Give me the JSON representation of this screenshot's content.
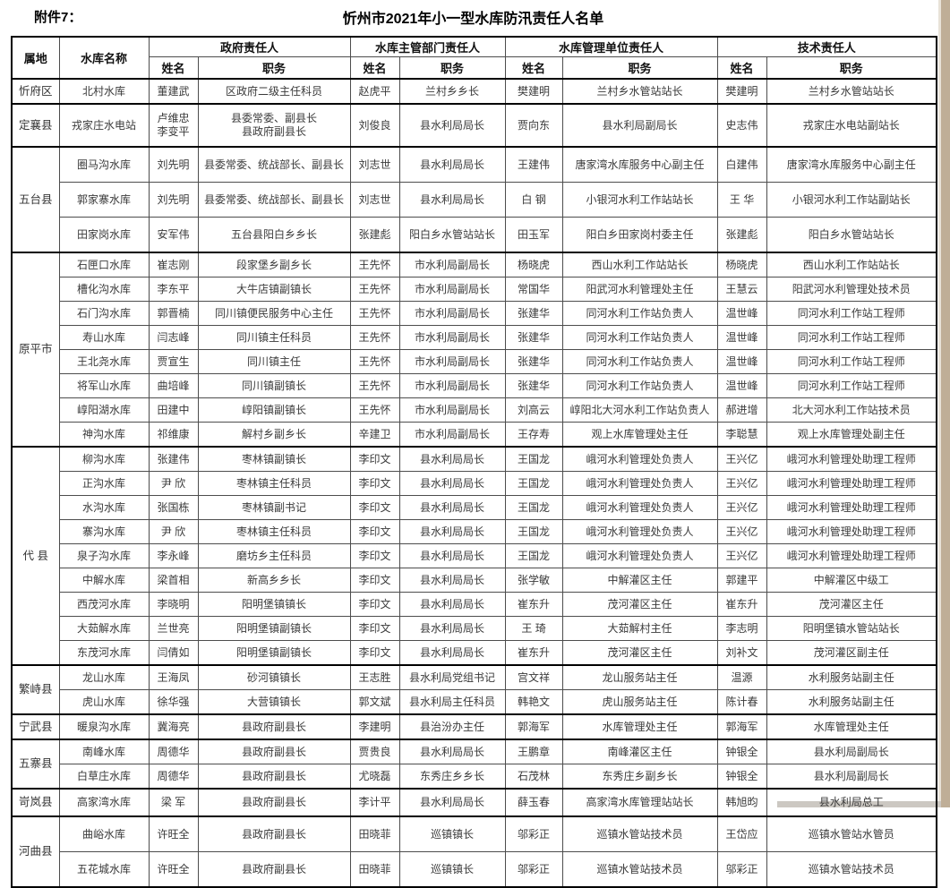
{
  "page": {
    "attachment_label": "附件7：",
    "title": "忻州市2021年小一型水库防汛责任人名单"
  },
  "colors": {
    "page_edge": "#bfae97",
    "scrollbar": "#ccc8c2",
    "table_border": "#000000"
  },
  "table": {
    "headers": {
      "region": "属地",
      "reservoir": "水库名称",
      "groups": [
        "政府责任人",
        "水库主管部门责任人",
        "水库管理单位责任人",
        "技术责任人"
      ],
      "name": "姓名",
      "duty": "职务"
    },
    "sections": [
      {
        "region": "忻府区",
        "rows": [
          {
            "reservoir": "北村水库",
            "gov_name": "董建武",
            "gov_duty": "区政府二级主任科员",
            "dept_name": "赵虎平",
            "dept_duty": "兰村乡乡长",
            "mgmt_name": "樊建明",
            "mgmt_duty": "兰村乡水管站站长",
            "tech_name": "樊建明",
            "tech_duty": "兰村乡水管站站长"
          }
        ]
      },
      {
        "region": "定襄县",
        "rows": [
          {
            "reservoir": "戎家庄水电站",
            "gov_name": "卢维忠\n李变平",
            "gov_duty": "县委常委、副县长\n县政府副县长",
            "dept_name": "刘俊良",
            "dept_duty": "县水利局局长",
            "mgmt_name": "贾向东",
            "mgmt_duty": "县水利局副局长",
            "tech_name": "史志伟",
            "tech_duty": "戎家庄水电站副站长"
          }
        ]
      },
      {
        "region": "五台县",
        "rows": [
          {
            "reservoir": "圈马沟水库",
            "gov_name": "刘先明",
            "gov_duty": "县委常委、统战部长、副县长",
            "dept_name": "刘志世",
            "dept_duty": "县水利局局长",
            "mgmt_name": "王建伟",
            "mgmt_duty": "唐家湾水库服务中心副主任",
            "tech_name": "白建伟",
            "tech_duty": "唐家湾水库服务中心副主任"
          },
          {
            "reservoir": "郭家寨水库",
            "gov_name": "刘先明",
            "gov_duty": "县委常委、统战部长、副县长",
            "dept_name": "刘志世",
            "dept_duty": "县水利局局长",
            "mgmt_name": "白 钢",
            "mgmt_duty": "小银河水利工作站站长",
            "tech_name": "王 华",
            "tech_duty": "小银河水利工作站副站长"
          },
          {
            "reservoir": "田家岗水库",
            "gov_name": "安军伟",
            "gov_duty": "五台县阳白乡乡长",
            "dept_name": "张建彪",
            "dept_duty": "阳白乡水管站站长",
            "mgmt_name": "田玉军",
            "mgmt_duty": "阳白乡田家岗村委主任",
            "tech_name": "张建彪",
            "tech_duty": "阳白乡水管站站长"
          }
        ]
      },
      {
        "region": "原平市",
        "rows": [
          {
            "reservoir": "石匣口水库",
            "gov_name": "崔志刚",
            "gov_duty": "段家堡乡副乡长",
            "dept_name": "王先怀",
            "dept_duty": "市水利局副局长",
            "mgmt_name": "杨晓虎",
            "mgmt_duty": "西山水利工作站站长",
            "tech_name": "杨晓虎",
            "tech_duty": "西山水利工作站站长"
          },
          {
            "reservoir": "槽化沟水库",
            "gov_name": "李东平",
            "gov_duty": "大牛店镇副镇长",
            "dept_name": "王先怀",
            "dept_duty": "市水利局副局长",
            "mgmt_name": "常国华",
            "mgmt_duty": "阳武河水利管理处主任",
            "tech_name": "王慧云",
            "tech_duty": "阳武河水利管理处技术员"
          },
          {
            "reservoir": "石门沟水库",
            "gov_name": "郭晋楠",
            "gov_duty": "同川镇便民服务中心主任",
            "dept_name": "王先怀",
            "dept_duty": "市水利局副局长",
            "mgmt_name": "张建华",
            "mgmt_duty": "同河水利工作站负责人",
            "tech_name": "温世峰",
            "tech_duty": "同河水利工作站工程师"
          },
          {
            "reservoir": "寿山水库",
            "gov_name": "闫志峰",
            "gov_duty": "同川镇主任科员",
            "dept_name": "王先怀",
            "dept_duty": "市水利局副局长",
            "mgmt_name": "张建华",
            "mgmt_duty": "同河水利工作站负责人",
            "tech_name": "温世峰",
            "tech_duty": "同河水利工作站工程师"
          },
          {
            "reservoir": "王北尧水库",
            "gov_name": "贾宣生",
            "gov_duty": "同川镇主任",
            "dept_name": "王先怀",
            "dept_duty": "市水利局副局长",
            "mgmt_name": "张建华",
            "mgmt_duty": "同河水利工作站负责人",
            "tech_name": "温世峰",
            "tech_duty": "同河水利工作站工程师"
          },
          {
            "reservoir": "将军山水库",
            "gov_name": "曲培峰",
            "gov_duty": "同川镇副镇长",
            "dept_name": "王先怀",
            "dept_duty": "市水利局副局长",
            "mgmt_name": "张建华",
            "mgmt_duty": "同河水利工作站负责人",
            "tech_name": "温世峰",
            "tech_duty": "同河水利工作站工程师"
          },
          {
            "reservoir": "崞阳湖水库",
            "gov_name": "田建中",
            "gov_duty": "崞阳镇副镇长",
            "dept_name": "王先怀",
            "dept_duty": "市水利局副局长",
            "mgmt_name": "刘高云",
            "mgmt_duty": "崞阳北大河水利工作站负责人",
            "tech_name": "郝进增",
            "tech_duty": "北大河水利工作站技术员"
          },
          {
            "reservoir": "神沟水库",
            "gov_name": "祁维康",
            "gov_duty": "解村乡副乡长",
            "dept_name": "辛建卫",
            "dept_duty": "市水利局副局长",
            "mgmt_name": "王存寿",
            "mgmt_duty": "观上水库管理处主任",
            "tech_name": "李聪慧",
            "tech_duty": "观上水库管理处副主任"
          }
        ]
      },
      {
        "region": "代 县",
        "rows": [
          {
            "reservoir": "柳沟水库",
            "gov_name": "张建伟",
            "gov_duty": "枣林镇副镇长",
            "dept_name": "李印文",
            "dept_duty": "县水利局局长",
            "mgmt_name": "王国龙",
            "mgmt_duty": "峨河水利管理处负责人",
            "tech_name": "王兴亿",
            "tech_duty": "峨河水利管理处助理工程师"
          },
          {
            "reservoir": "正沟水库",
            "gov_name": "尹 欣",
            "gov_duty": "枣林镇主任科员",
            "dept_name": "李印文",
            "dept_duty": "县水利局局长",
            "mgmt_name": "王国龙",
            "mgmt_duty": "峨河水利管理处负责人",
            "tech_name": "王兴亿",
            "tech_duty": "峨河水利管理处助理工程师"
          },
          {
            "reservoir": "水沟水库",
            "gov_name": "张国栋",
            "gov_duty": "枣林镇副书记",
            "dept_name": "李印文",
            "dept_duty": "县水利局局长",
            "mgmt_name": "王国龙",
            "mgmt_duty": "峨河水利管理处负责人",
            "tech_name": "王兴亿",
            "tech_duty": "峨河水利管理处助理工程师"
          },
          {
            "reservoir": "寨沟水库",
            "gov_name": "尹 欣",
            "gov_duty": "枣林镇主任科员",
            "dept_name": "李印文",
            "dept_duty": "县水利局局长",
            "mgmt_name": "王国龙",
            "mgmt_duty": "峨河水利管理处负责人",
            "tech_name": "王兴亿",
            "tech_duty": "峨河水利管理处助理工程师"
          },
          {
            "reservoir": "泉子沟水库",
            "gov_name": "李永峰",
            "gov_duty": "磨坊乡主任科员",
            "dept_name": "李印文",
            "dept_duty": "县水利局局长",
            "mgmt_name": "王国龙",
            "mgmt_duty": "峨河水利管理处负责人",
            "tech_name": "王兴亿",
            "tech_duty": "峨河水利管理处助理工程师"
          },
          {
            "reservoir": "中解水库",
            "gov_name": "梁首相",
            "gov_duty": "新高乡乡长",
            "dept_name": "李印文",
            "dept_duty": "县水利局局长",
            "mgmt_name": "张学敏",
            "mgmt_duty": "中解灌区主任",
            "tech_name": "郭建平",
            "tech_duty": "中解灌区中级工"
          },
          {
            "reservoir": "西茂河水库",
            "gov_name": "李晓明",
            "gov_duty": "阳明堡镇镇长",
            "dept_name": "李印文",
            "dept_duty": "县水利局局长",
            "mgmt_name": "崔东升",
            "mgmt_duty": "茂河灌区主任",
            "tech_name": "崔东升",
            "tech_duty": "茂河灌区主任"
          },
          {
            "reservoir": "大茹解水库",
            "gov_name": "兰世亮",
            "gov_duty": "阳明堡镇副镇长",
            "dept_name": "李印文",
            "dept_duty": "县水利局局长",
            "mgmt_name": "王 琦",
            "mgmt_duty": "大茹解村主任",
            "tech_name": "李志明",
            "tech_duty": "阳明堡镇水管站站长"
          },
          {
            "reservoir": "东茂河水库",
            "gov_name": "闫倩如",
            "gov_duty": "阳明堡镇副镇长",
            "dept_name": "李印文",
            "dept_duty": "县水利局局长",
            "mgmt_name": "崔东升",
            "mgmt_duty": "茂河灌区主任",
            "tech_name": "刘补文",
            "tech_duty": "茂河灌区副主任"
          }
        ]
      },
      {
        "region": "繁峙县",
        "rows": [
          {
            "reservoir": "龙山水库",
            "gov_name": "王海凤",
            "gov_duty": "砂河镇镇长",
            "dept_name": "王志胜",
            "dept_duty": "县水利局党组书记",
            "mgmt_name": "宫文祥",
            "mgmt_duty": "龙山服务站主任",
            "tech_name": "温源",
            "tech_duty": "水利服务站副主任"
          },
          {
            "reservoir": "虎山水库",
            "gov_name": "徐华强",
            "gov_duty": "大营镇镇长",
            "dept_name": "郭文斌",
            "dept_duty": "县水利局主任科员",
            "mgmt_name": "韩艳文",
            "mgmt_duty": "虎山服务站主任",
            "tech_name": "陈计春",
            "tech_duty": "水利服务站副主任"
          }
        ]
      },
      {
        "region": "宁武县",
        "rows": [
          {
            "reservoir": "暖泉沟水库",
            "gov_name": "冀海亮",
            "gov_duty": "县政府副县长",
            "dept_name": "李建明",
            "dept_duty": "县治汾办主任",
            "mgmt_name": "郭海军",
            "mgmt_duty": "水库管理处主任",
            "tech_name": "郭海军",
            "tech_duty": "水库管理处主任"
          }
        ]
      },
      {
        "region": "五寨县",
        "rows": [
          {
            "reservoir": "南峰水库",
            "gov_name": "周德华",
            "gov_duty": "县政府副县长",
            "dept_name": "贾贵良",
            "dept_duty": "县水利局局长",
            "mgmt_name": "王鹏章",
            "mgmt_duty": "南峰灌区主任",
            "tech_name": "钟银全",
            "tech_duty": "县水利局副局长"
          },
          {
            "reservoir": "白草庄水库",
            "gov_name": "周德华",
            "gov_duty": "县政府副县长",
            "dept_name": "尤晓磊",
            "dept_duty": "东秀庄乡乡长",
            "mgmt_name": "石茂林",
            "mgmt_duty": "东秀庄乡副乡长",
            "tech_name": "钟银全",
            "tech_duty": "县水利局副局长"
          }
        ]
      },
      {
        "region": "岢岚县",
        "rows": [
          {
            "reservoir": "高家湾水库",
            "gov_name": "梁 军",
            "gov_duty": "县政府副县长",
            "dept_name": "李计平",
            "dept_duty": "县水利局局长",
            "mgmt_name": "薛玉春",
            "mgmt_duty": "高家湾水库管理站站长",
            "tech_name": "韩旭昀",
            "tech_duty": "县水利局总工"
          }
        ]
      },
      {
        "region": "河曲县",
        "rows": [
          {
            "reservoir": "曲峪水库",
            "gov_name": "许旺全",
            "gov_duty": "县政府副县长",
            "dept_name": "田晓菲",
            "dept_duty": "巡镇镇长",
            "mgmt_name": "邬彩正",
            "mgmt_duty": "巡镇水管站技术员",
            "tech_name": "王岱应",
            "tech_duty": "巡镇水管站水管员"
          },
          {
            "reservoir": "五花城水库",
            "gov_name": "许旺全",
            "gov_duty": "县政府副县长",
            "dept_name": "田晓菲",
            "dept_duty": "巡镇镇长",
            "mgmt_name": "邬彩正",
            "mgmt_duty": "巡镇水管站技术员",
            "tech_name": "邬彩正",
            "tech_duty": "巡镇水管站技术员"
          }
        ]
      }
    ]
  }
}
